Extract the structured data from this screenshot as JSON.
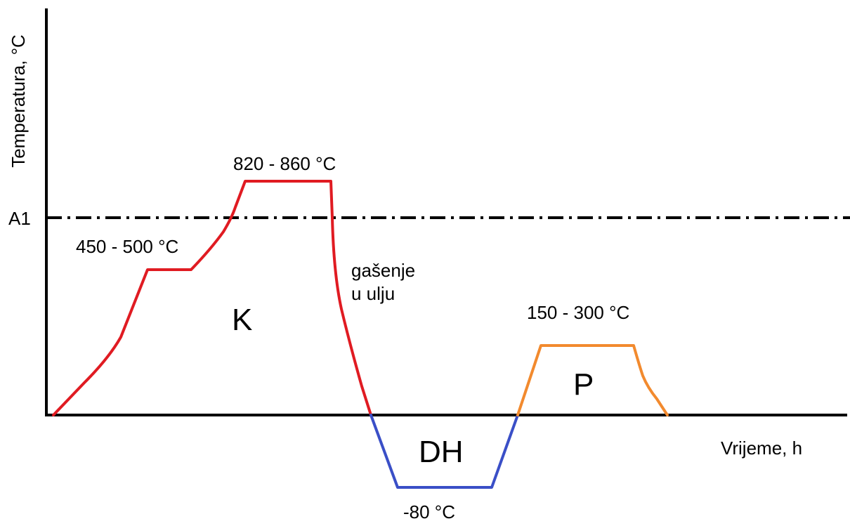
{
  "axes": {
    "y_label": "Temperatura, °C",
    "x_label": "Vrijeme, h",
    "reference_line_label": "A1"
  },
  "annotations": {
    "preheat": "450 - 500 °C",
    "austenitize": "820 - 860 °C",
    "quench_line1": "gašenje",
    "quench_line2": "u ulju",
    "temper": "150 - 300 °C",
    "deep_cool": "-80 °C"
  },
  "stage_labels": {
    "hardening": "K",
    "deep_cooling": "DH",
    "tempering": "P"
  },
  "colors": {
    "hardening": "#e01b22",
    "deep_cooling": "#3a4fc7",
    "tempering": "#f28a2e",
    "axis": "#000000"
  }
}
